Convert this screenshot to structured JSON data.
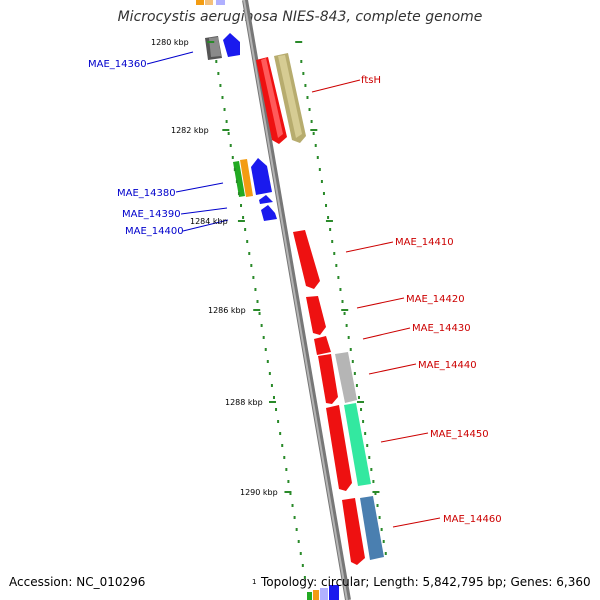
{
  "title": "Microcystis aeruginosa NIES-843, complete genome",
  "footer": {
    "accession": "Accession: NC_010296",
    "topology": "Topology: circular; Length: 5,842,795 bp; Genes: 6,360",
    "small_label": "1"
  },
  "scale_labels": [
    "1280 kbp",
    "1282 kbp",
    "1284 kbp",
    "1286 kbp",
    "1288 kbp",
    "1290 kbp"
  ],
  "gene_labels": {
    "left": [
      "MAE_14360",
      "MAE_14380",
      "MAE_14390",
      "MAE_14400"
    ],
    "right": [
      "ftsH",
      "MAE_14410",
      "MAE_14420",
      "MAE_14430",
      "MAE_14440",
      "MAE_14450",
      "MAE_14460"
    ]
  },
  "colors": {
    "left_label": "#0000cc",
    "right_label": "#cc0000",
    "backbone": "#8c8c8c",
    "tick": "#2a8a2a",
    "red_gene": "#ee1111",
    "blue_gene": "#1a1aee"
  }
}
